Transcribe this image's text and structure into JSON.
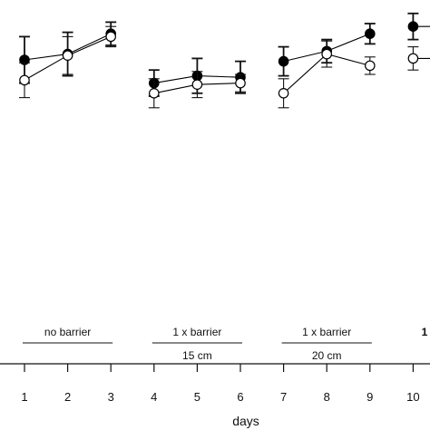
{
  "chart_data": {
    "type": "line",
    "xlabel": "days",
    "ylabel": "",
    "x": [
      1,
      2,
      3,
      4,
      5,
      6,
      7,
      8,
      9,
      10,
      11
    ],
    "xlim": [
      0,
      10.7
    ],
    "ylim": [
      0,
      100
    ],
    "x_tick_labels": [
      "1",
      "2",
      "3",
      "4",
      "5",
      "6",
      "7",
      "8",
      "9",
      "10"
    ],
    "grid": false,
    "legend": "none",
    "series": [
      {
        "style": "filled-circle",
        "color": "#000000",
        "segments": [
          [
            1,
            3
          ],
          [
            4,
            6
          ],
          [
            7,
            9
          ],
          [
            10,
            11
          ]
        ],
        "values": [
          75,
          79,
          93,
          59,
          64,
          63,
          74,
          81,
          93,
          98,
          98
        ],
        "errors": [
          16,
          15,
          8,
          9,
          12,
          11,
          10,
          8,
          7,
          9,
          0
        ]
      },
      {
        "style": "open-circle",
        "color": "#000000",
        "segments": [
          [
            1,
            3
          ],
          [
            4,
            6
          ],
          [
            7,
            9
          ],
          [
            10,
            11
          ]
        ],
        "values": [
          61,
          78,
          91,
          52,
          58,
          59,
          52,
          79,
          71,
          76,
          76
        ],
        "errors": [
          12,
          13,
          7,
          10,
          9,
          6,
          10,
          9,
          6,
          8,
          0
        ]
      }
    ],
    "condition_labels": [
      {
        "line1": "no barrier",
        "line2": "",
        "from": 1,
        "to": 3
      },
      {
        "line1": "1 x barrier",
        "line2": "15 cm",
        "from": 4,
        "to": 6
      },
      {
        "line1": "1 x barrier",
        "line2": "20 cm",
        "from": 7,
        "to": 9
      },
      {
        "line1": "1",
        "line2": "",
        "from": 10,
        "to": 11
      }
    ]
  }
}
